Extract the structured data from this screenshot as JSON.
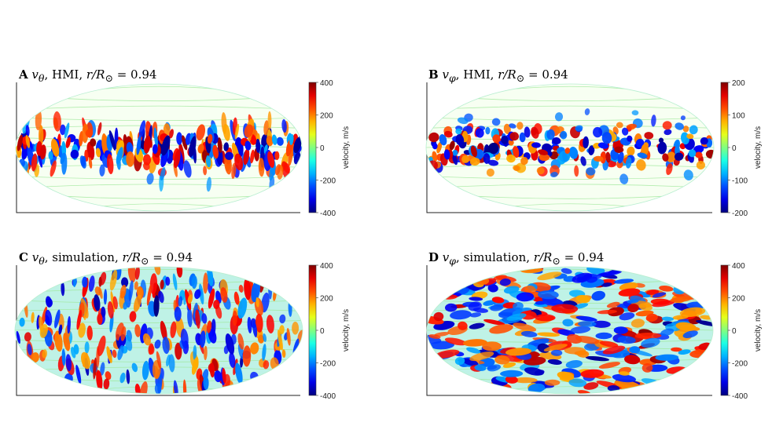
{
  "chart_data": [
    {
      "type": "heatmap",
      "panel": "A",
      "title": {
        "letter": "A",
        "variable": "v",
        "subscript": "θ",
        "source": "HMI",
        "radius_label": "r/R",
        "sun": "⊙",
        "radius_value": "0.94"
      },
      "projection": "Mollweide (full-sphere ellipse)",
      "colorbar": {
        "label": "velocity, m/s",
        "ticks": [
          400,
          200,
          0,
          -200,
          -400
        ],
        "range": [
          -400,
          400
        ]
      },
      "pattern": "equatorial band of alternating strong positive/negative cells, pale contours at high latitudes"
    },
    {
      "type": "heatmap",
      "panel": "B",
      "title": {
        "letter": "B",
        "variable": "v",
        "subscript": "φ",
        "source": "HMI",
        "radius_label": "r/R",
        "sun": "⊙",
        "radius_value": "0.94"
      },
      "projection": "Mollweide (full-sphere ellipse)",
      "colorbar": {
        "label": "velocity, m/s",
        "ticks": [
          200,
          100,
          0,
          -100,
          -200
        ],
        "range": [
          -200,
          200
        ]
      },
      "pattern": "equatorial band of moderate cells, pale contours at high latitudes"
    },
    {
      "type": "heatmap",
      "panel": "C",
      "title": {
        "letter": "C",
        "variable": "v",
        "subscript": "θ",
        "source": "simulation",
        "radius_label": "r/R",
        "sun": "⊙",
        "radius_value": "0.94"
      },
      "projection": "Mollweide (full-sphere ellipse)",
      "colorbar": {
        "label": "velocity, m/s",
        "ticks": [
          400,
          200,
          0,
          -200,
          -400
        ],
        "range": [
          -400,
          400
        ]
      },
      "pattern": "cells over the whole sphere, north-south elongated"
    },
    {
      "type": "heatmap",
      "panel": "D",
      "title": {
        "letter": "D",
        "variable": "v",
        "subscript": "φ",
        "source": "simulation",
        "radius_label": "r/R",
        "sun": "⊙",
        "radius_value": "0.94"
      },
      "projection": "Mollweide (full-sphere ellipse)",
      "colorbar": {
        "label": "velocity, m/s",
        "ticks": [
          400,
          200,
          0,
          -200,
          -400
        ],
        "range": [
          -400,
          400
        ]
      },
      "pattern": "cells over the whole sphere, east-west elongated"
    }
  ]
}
